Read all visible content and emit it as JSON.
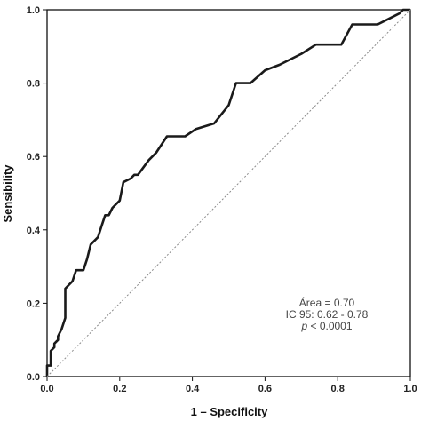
{
  "chart_data": {
    "type": "line",
    "xlabel": "1 – Specificity",
    "ylabel": "Sensibility",
    "xlim": [
      0,
      1
    ],
    "ylim": [
      0,
      1
    ],
    "x_ticks": [
      "0.0",
      "0.2",
      "0.4",
      "0.6",
      "0.8",
      "1.0"
    ],
    "y_ticks": [
      "0.0",
      "0.2",
      "0.4",
      "0.6",
      "0.8",
      "1.0"
    ],
    "grid": false,
    "series": [
      {
        "role": "roc-curve",
        "color": "#1a1a1a",
        "points": [
          [
            0.0,
            0.0
          ],
          [
            0.0,
            0.03
          ],
          [
            0.01,
            0.03
          ],
          [
            0.01,
            0.07
          ],
          [
            0.02,
            0.08
          ],
          [
            0.02,
            0.09
          ],
          [
            0.03,
            0.1
          ],
          [
            0.03,
            0.11
          ],
          [
            0.04,
            0.13
          ],
          [
            0.05,
            0.16
          ],
          [
            0.05,
            0.18
          ],
          [
            0.05,
            0.24
          ],
          [
            0.07,
            0.26
          ],
          [
            0.08,
            0.29
          ],
          [
            0.1,
            0.29
          ],
          [
            0.11,
            0.32
          ],
          [
            0.12,
            0.36
          ],
          [
            0.13,
            0.37
          ],
          [
            0.14,
            0.38
          ],
          [
            0.15,
            0.41
          ],
          [
            0.16,
            0.44
          ],
          [
            0.17,
            0.44
          ],
          [
            0.18,
            0.46
          ],
          [
            0.2,
            0.48
          ],
          [
            0.21,
            0.53
          ],
          [
            0.23,
            0.54
          ],
          [
            0.24,
            0.55
          ],
          [
            0.25,
            0.55
          ],
          [
            0.28,
            0.59
          ],
          [
            0.3,
            0.61
          ],
          [
            0.33,
            0.655
          ],
          [
            0.38,
            0.655
          ],
          [
            0.41,
            0.675
          ],
          [
            0.46,
            0.69
          ],
          [
            0.5,
            0.74
          ],
          [
            0.52,
            0.8
          ],
          [
            0.56,
            0.8
          ],
          [
            0.6,
            0.835
          ],
          [
            0.64,
            0.85
          ],
          [
            0.7,
            0.88
          ],
          [
            0.74,
            0.905
          ],
          [
            0.81,
            0.905
          ],
          [
            0.84,
            0.96
          ],
          [
            0.91,
            0.96
          ],
          [
            0.94,
            0.975
          ],
          [
            0.96,
            0.985
          ],
          [
            0.97,
            0.99
          ],
          [
            0.98,
            1.0
          ],
          [
            1.0,
            1.0
          ]
        ]
      },
      {
        "role": "reference-line",
        "color": "#8a8a8a",
        "points": [
          [
            0,
            0
          ],
          [
            1,
            1
          ]
        ]
      }
    ],
    "annotations": [
      {
        "key": "area",
        "text": "Área = 0.70"
      },
      {
        "key": "ic",
        "text": "IC 95: 0.62 - 0.78"
      },
      {
        "key": "p",
        "text_italic": "p",
        "text": " < 0.0001"
      }
    ]
  }
}
